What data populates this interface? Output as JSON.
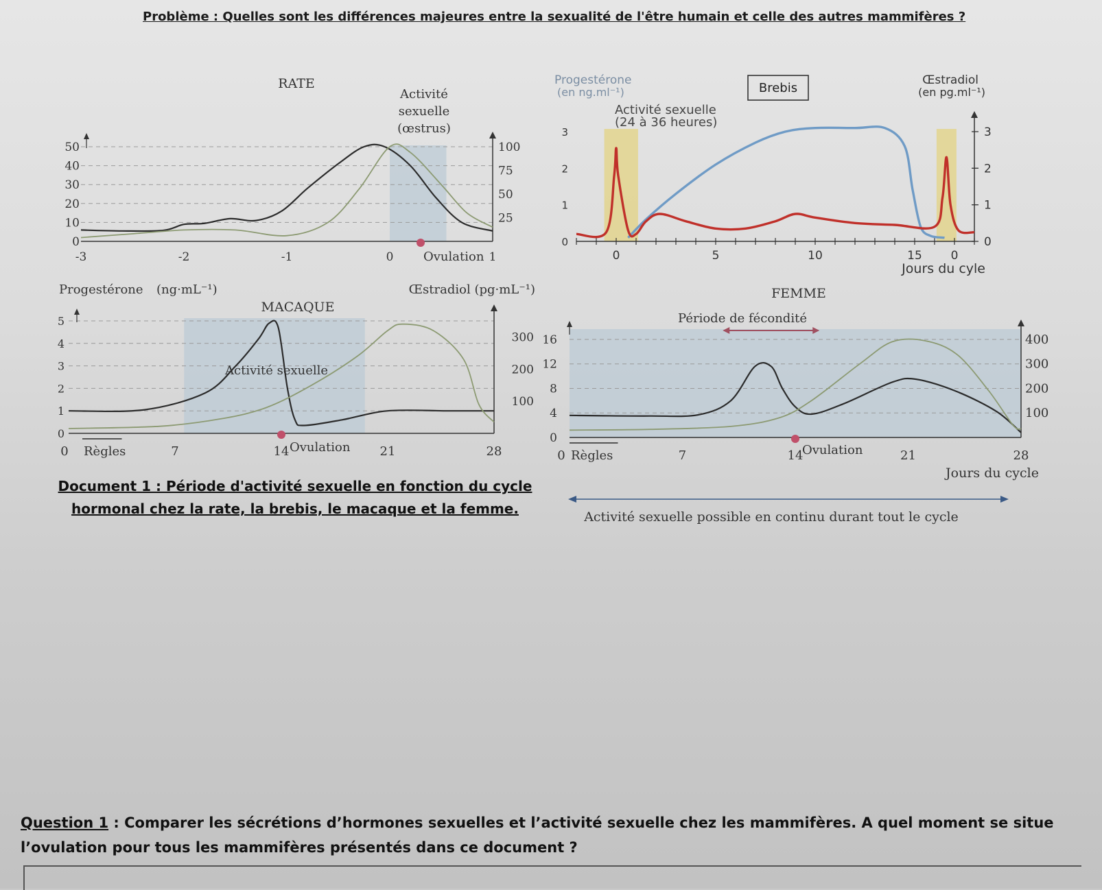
{
  "problem": "Problème : Quelles sont les différences majeures entre la sexualité de l'être humain et celle des autres mammifères ?",
  "caption": {
    "line1": "Document 1 : Période d'activité sexuelle en fonction du cycle",
    "line2": "hormonal chez la rate, la brebis, le macaque et la femme."
  },
  "question": {
    "label": "Question 1",
    "text": " : Comparer les sécrétions d’hormones sexuelles et l’activité sexuelle chez les mammifères. A quel moment se situe l’ovulation pour tous les mammifères présentés dans ce document ?"
  },
  "colors": {
    "progesterone": "#2b2b2b",
    "estradiol": "#8c9a72",
    "shade": "#bccbd6",
    "ovulation_dot": "#c0506a",
    "brebis_progesterone": "#6f9bc6",
    "brebis_estradiol": "#c0302a",
    "brebis_activity": "#e3d58e"
  },
  "chart_data": [
    {
      "id": "rate",
      "type": "line",
      "title": "RATE",
      "activity_label": [
        "Activité",
        "sexuelle",
        "(œstrus)"
      ],
      "ovulation_label": "Ovulation",
      "x_ticks": [
        "-3",
        "-2",
        "-1",
        "0",
        "1"
      ],
      "xlim": [
        -3,
        1
      ],
      "y_left_ticks": [
        "0",
        "10",
        "20",
        "30",
        "40",
        "50"
      ],
      "y_left_lim": [
        0,
        50
      ],
      "y_right_ticks": [
        "25",
        "50",
        "75",
        "100"
      ],
      "y_right_lim": [
        0,
        100
      ],
      "shade_x": [
        0,
        0.55
      ],
      "ovulation_x": 0.3,
      "series": [
        {
          "axis": "left",
          "points": [
            [
              -3,
              6
            ],
            [
              -2.6,
              5.5
            ],
            [
              -2.2,
              5.8
            ],
            [
              -2.0,
              9
            ],
            [
              -1.8,
              9.5
            ],
            [
              -1.55,
              12
            ],
            [
              -1.3,
              11
            ],
            [
              -1.05,
              16
            ],
            [
              -0.8,
              28
            ],
            [
              -0.5,
              41
            ],
            [
              -0.25,
              50
            ],
            [
              -0.05,
              50
            ],
            [
              0.2,
              40
            ],
            [
              0.45,
              23
            ],
            [
              0.7,
              10
            ],
            [
              1,
              5.5
            ]
          ]
        },
        {
          "axis": "right",
          "points": [
            [
              -3,
              4
            ],
            [
              -2.5,
              8
            ],
            [
              -2,
              12
            ],
            [
              -1.5,
              12
            ],
            [
              -1,
              6
            ],
            [
              -0.6,
              20
            ],
            [
              -0.3,
              55
            ],
            [
              0,
              100
            ],
            [
              0.2,
              94
            ],
            [
              0.5,
              60
            ],
            [
              0.75,
              30
            ],
            [
              1,
              15
            ]
          ]
        }
      ]
    },
    {
      "id": "brebis",
      "type": "line",
      "title": "Brebis",
      "left_axis_label": [
        "Progestérone",
        "(en ng.ml⁻¹)"
      ],
      "right_axis_label": [
        "Œstradiol",
        "(en pg.ml⁻¹)"
      ],
      "activity_label": [
        "Activité sexuelle",
        "(24 à 36 heures)"
      ],
      "xlabel": "Jours du cyle",
      "x_ticks": [
        "0",
        "5",
        "10",
        "15",
        "0"
      ],
      "x_tick_values": [
        0,
        5,
        10,
        15,
        17
      ],
      "xlim": [
        -2,
        18
      ],
      "y_left_ticks": [
        "0",
        "1",
        "2",
        "3"
      ],
      "y_left_lim": [
        0,
        3
      ],
      "y_right_ticks": [
        "0",
        "1",
        "2",
        "3"
      ],
      "y_right_lim": [
        0,
        3
      ],
      "shade_x": [
        [
          -0.6,
          1.1
        ],
        [
          16.1,
          17.1
        ]
      ],
      "series": [
        {
          "axis": "left",
          "points": [
            [
              0.6,
              0.1
            ],
            [
              1.5,
              0.6
            ],
            [
              3,
              1.3
            ],
            [
              5,
              2.1
            ],
            [
              7,
              2.7
            ],
            [
              8.5,
              3.0
            ],
            [
              10,
              3.1
            ],
            [
              12,
              3.1
            ],
            [
              13.5,
              3.1
            ],
            [
              14.5,
              2.6
            ],
            [
              14.9,
              1.4
            ],
            [
              15.3,
              0.4
            ],
            [
              15.8,
              0.15
            ],
            [
              16.5,
              0.1
            ]
          ]
        },
        {
          "axis": "right",
          "points": [
            [
              -2,
              0.2
            ],
            [
              -0.5,
              0.25
            ],
            [
              -0.1,
              1.8
            ],
            [
              0,
              2.55
            ],
            [
              0.1,
              1.8
            ],
            [
              0.6,
              0.3
            ],
            [
              1,
              0.2
            ],
            [
              1.5,
              0.55
            ],
            [
              2.2,
              0.75
            ],
            [
              3.5,
              0.55
            ],
            [
              5,
              0.35
            ],
            [
              6.5,
              0.35
            ],
            [
              8,
              0.55
            ],
            [
              9,
              0.75
            ],
            [
              10,
              0.65
            ],
            [
              12,
              0.5
            ],
            [
              14,
              0.45
            ],
            [
              16,
              0.4
            ],
            [
              16.4,
              1.2
            ],
            [
              16.6,
              2.3
            ],
            [
              16.8,
              1.0
            ],
            [
              17.2,
              0.3
            ],
            [
              18,
              0.25
            ]
          ]
        }
      ]
    },
    {
      "id": "macaque",
      "type": "line",
      "title": "MACAQUE",
      "left_axis_label": "Progestérone",
      "left_axis_unit": "(ng·mL⁻¹)",
      "right_axis_label": "Œstradiol (pg·mL⁻¹)",
      "activity_label": "Activité sexuelle",
      "ovulation_label": "Ovulation",
      "regles_label": "Règles",
      "x_ticks": [
        "0",
        "7",
        "14",
        "21",
        "28"
      ],
      "xlim": [
        0,
        28
      ],
      "y_left_ticks": [
        "0",
        "1",
        "2",
        "3",
        "4",
        "5"
      ],
      "y_left_lim": [
        0,
        5
      ],
      "y_right_ticks": [
        "100",
        "200",
        "300"
      ],
      "y_right_lim": [
        0,
        350
      ],
      "shade_x": [
        7.6,
        19.5
      ],
      "ovulation_x": 14,
      "series": [
        {
          "axis": "left",
          "points": [
            [
              0,
              1
            ],
            [
              5,
              1.05
            ],
            [
              9,
              1.8
            ],
            [
              11,
              3.0
            ],
            [
              12.5,
              4.2
            ],
            [
              13.2,
              4.9
            ],
            [
              13.8,
              4.7
            ],
            [
              14.4,
              2.0
            ],
            [
              14.9,
              0.6
            ],
            [
              15.5,
              0.35
            ],
            [
              18,
              0.6
            ],
            [
              21,
              1.0
            ],
            [
              25,
              1.0
            ],
            [
              28,
              1.0
            ]
          ]
        },
        {
          "axis": "right",
          "points": [
            [
              0,
              15
            ],
            [
              6,
              22
            ],
            [
              10,
              45
            ],
            [
              13,
              80
            ],
            [
              16,
              150
            ],
            [
              19,
              240
            ],
            [
              21,
              320
            ],
            [
              22,
              340
            ],
            [
              24,
              320
            ],
            [
              26,
              230
            ],
            [
              27,
              90
            ],
            [
              28,
              35
            ]
          ]
        }
      ]
    },
    {
      "id": "femme",
      "type": "line",
      "title": "FEMME",
      "fecondite_label": "Période de fécondité",
      "ovulation_label": "Ovulation",
      "regles_label": "Règles",
      "xlabel": "Jours du cycle",
      "continu_label": "Activité sexuelle possible en continu durant tout le cycle",
      "x_ticks": [
        "0",
        "7",
        "14",
        "21",
        "28"
      ],
      "xlim": [
        0,
        28
      ],
      "y_left_ticks": [
        "0",
        "4",
        "8",
        "12",
        "16"
      ],
      "y_left_lim": [
        0,
        17
      ],
      "y_right_ticks": [
        "100",
        "200",
        "300",
        "400"
      ],
      "y_right_lim": [
        0,
        425
      ],
      "fecondite_x": [
        9.5,
        15.5
      ],
      "ovulation_x": 14,
      "series": [
        {
          "axis": "left",
          "points": [
            [
              0,
              3.6
            ],
            [
              5,
              3.5
            ],
            [
              8,
              3.7
            ],
            [
              10,
              6
            ],
            [
              11.5,
              11.6
            ],
            [
              12.5,
              11.6
            ],
            [
              13.2,
              8
            ],
            [
              14,
              5.0
            ],
            [
              15,
              3.8
            ],
            [
              17,
              5.5
            ],
            [
              20,
              9
            ],
            [
              21.5,
              9.5
            ],
            [
              24,
              7.5
            ],
            [
              26.5,
              4.2
            ],
            [
              28,
              0.8
            ]
          ]
        },
        {
          "axis": "right",
          "points": [
            [
              0,
              30
            ],
            [
              5,
              33
            ],
            [
              10,
              45
            ],
            [
              13,
              80
            ],
            [
              15,
              150
            ],
            [
              18,
              300
            ],
            [
              20,
              390
            ],
            [
              22,
              395
            ],
            [
              24,
              340
            ],
            [
              26,
              190
            ],
            [
              27.5,
              50
            ],
            [
              28,
              35
            ]
          ]
        }
      ]
    }
  ]
}
